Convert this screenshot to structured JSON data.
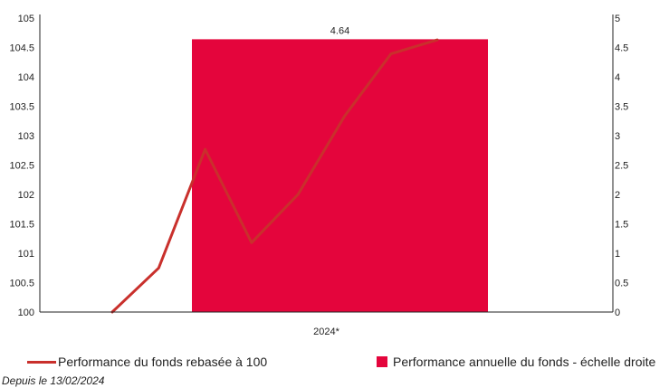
{
  "chart_data": {
    "type": "bar",
    "categories": [
      "2024*"
    ],
    "series": [
      {
        "name": "Performance annuelle du fonds - échelle droite",
        "type": "bar",
        "axis": "right",
        "values": [
          4.64
        ],
        "data_labels": [
          "4.64"
        ],
        "color": "#E4053C"
      },
      {
        "name": "Performance du fonds rebasée à 100",
        "type": "line",
        "axis": "left",
        "x": [
          0,
          1,
          2,
          3,
          4,
          5,
          6,
          7
        ],
        "values": [
          100,
          100.75,
          102.77,
          101.18,
          102.0,
          103.33,
          104.39,
          104.63
        ],
        "color": "#C9302C"
      }
    ],
    "y_left": {
      "min": 100,
      "max": 105,
      "ticks": [
        "100",
        "100.5",
        "101",
        "101.5",
        "102",
        "102.5",
        "103",
        "103.5",
        "104",
        "104.5",
        "105"
      ]
    },
    "y_right": {
      "min": 0,
      "max": 5,
      "ticks": [
        "0",
        "0.5",
        "1",
        "1.5",
        "2",
        "2.5",
        "3",
        "3.5",
        "4",
        "4.5",
        "5"
      ]
    },
    "grid": false,
    "legend_position": "bottom"
  },
  "legend": {
    "line_label": "Performance du fonds rebasée à 100",
    "bar_label": "Performance annuelle du fonds - échelle droite"
  },
  "footnote": "Depuis le 13/02/2024",
  "colors": {
    "line": "#C9302C",
    "bar": "#E4053C",
    "axis": "#222222"
  }
}
